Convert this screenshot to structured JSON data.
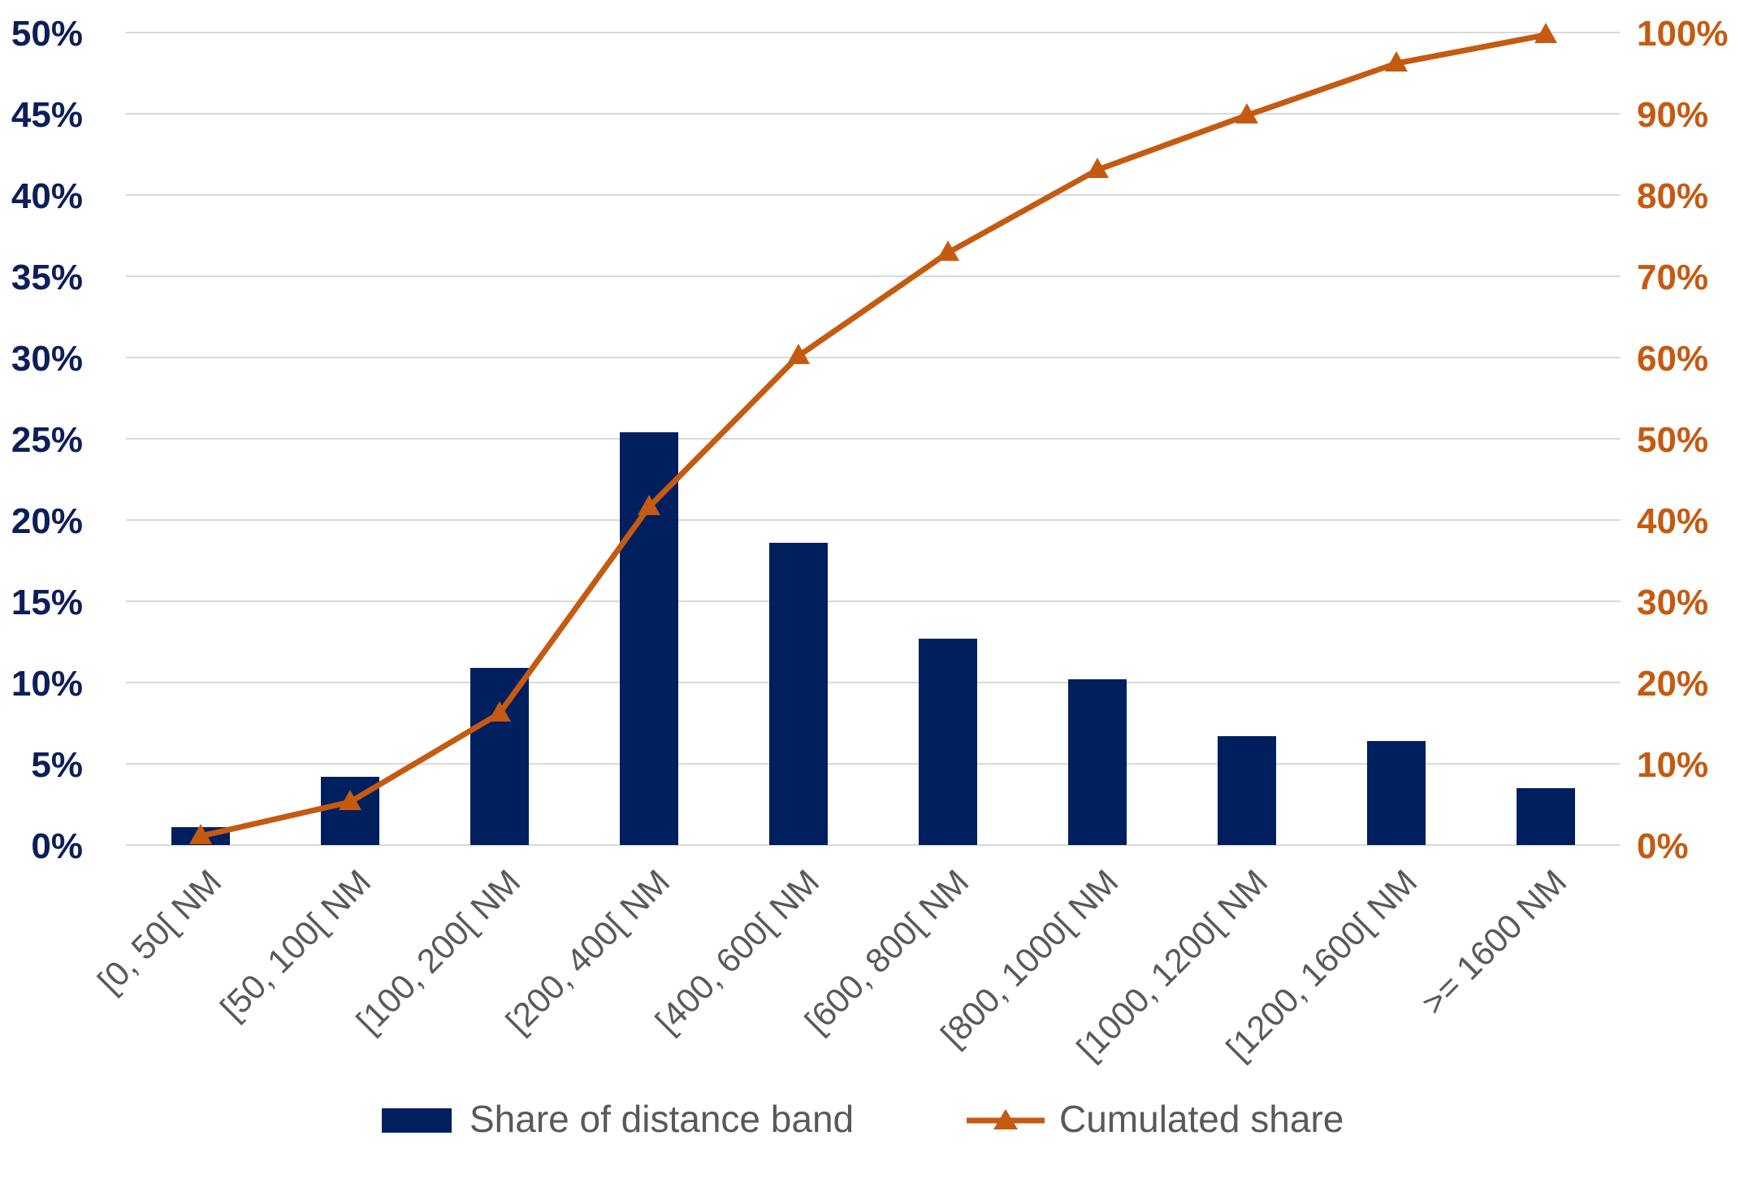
{
  "colors": {
    "bar": "#001f5f",
    "line": "#c55a11",
    "left_axis_text": "#0d1e5a",
    "right_axis_text": "#c55a11"
  },
  "chart_data": {
    "type": "bar",
    "categories": [
      "[0, 50[ NM",
      "[50, 100[ NM",
      "[100, 200[ NM",
      "[200, 400[ NM",
      "[400, 600[ NM",
      "[600, 800[ NM",
      "[800, 1000[ NM",
      "[1000, 1200[ NM",
      "[1200, 1600[ NM",
      ">= 1600 NM"
    ],
    "series": [
      {
        "name": "Share of distance band",
        "type": "bar",
        "axis": "left",
        "values": [
          1.1,
          4.2,
          10.9,
          25.4,
          18.6,
          12.7,
          10.2,
          6.7,
          6.4,
          3.5
        ]
      },
      {
        "name": "Cumulated share",
        "type": "line",
        "axis": "right",
        "marker": "triangle",
        "values": [
          1.1,
          5.3,
          16.2,
          41.6,
          60.2,
          72.9,
          83.1,
          89.8,
          96.2,
          99.7
        ]
      }
    ],
    "y_left": {
      "ylim": [
        0,
        50
      ],
      "ticks": [
        0,
        5,
        10,
        15,
        20,
        25,
        30,
        35,
        40,
        45,
        50
      ],
      "tick_labels": [
        "0%",
        "5%",
        "10%",
        "15%",
        "20%",
        "25%",
        "30%",
        "35%",
        "40%",
        "45%",
        "50%"
      ]
    },
    "y_right": {
      "ylim": [
        0,
        100
      ],
      "ticks": [
        0,
        10,
        20,
        30,
        40,
        50,
        60,
        70,
        80,
        90,
        100
      ],
      "tick_labels": [
        "0%",
        "10%",
        "20%",
        "30%",
        "40%",
        "50%",
        "60%",
        "70%",
        "80%",
        "90%",
        "100%"
      ]
    },
    "grid": true,
    "legend_position": "bottom",
    "title": "",
    "xlabel": "",
    "ylabel": ""
  }
}
